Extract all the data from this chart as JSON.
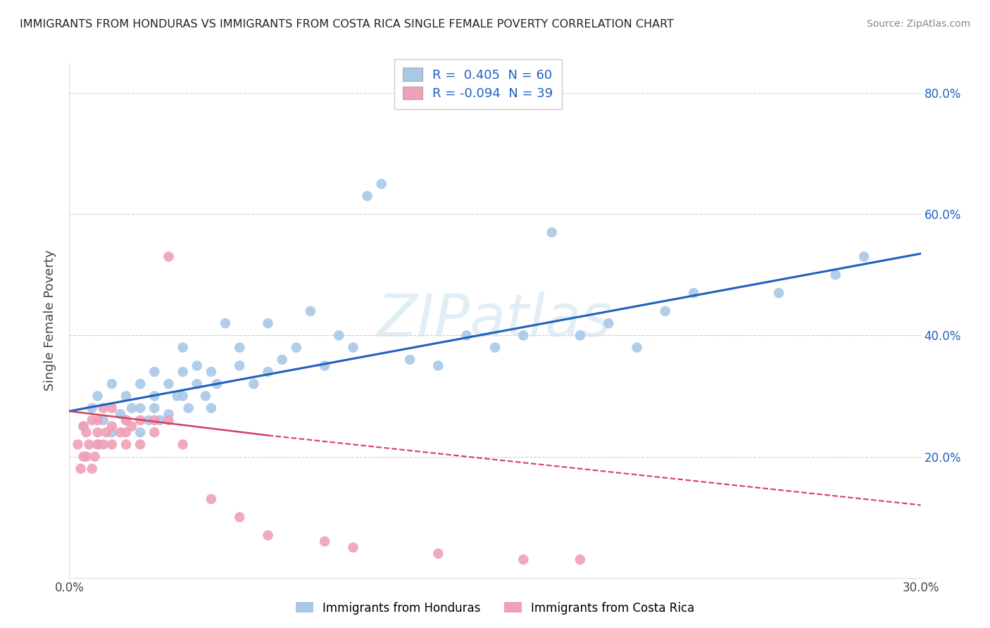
{
  "title": "IMMIGRANTS FROM HONDURAS VS IMMIGRANTS FROM COSTA RICA SINGLE FEMALE POVERTY CORRELATION CHART",
  "source": "Source: ZipAtlas.com",
  "ylabel": "Single Female Poverty",
  "r_honduras": 0.405,
  "n_honduras": 60,
  "r_costarica": -0.094,
  "n_costarica": 39,
  "xlim": [
    0.0,
    0.3
  ],
  "ylim": [
    0.0,
    0.85
  ],
  "color_honduras": "#a8c8e8",
  "color_costarica": "#f0a0b8",
  "line_color_honduras": "#2060c0",
  "line_color_costarica": "#d04060",
  "watermark": "ZIPatlas",
  "scatter_honduras_x": [
    0.005,
    0.008,
    0.01,
    0.01,
    0.012,
    0.015,
    0.015,
    0.018,
    0.02,
    0.02,
    0.022,
    0.025,
    0.025,
    0.025,
    0.028,
    0.03,
    0.03,
    0.03,
    0.032,
    0.035,
    0.035,
    0.038,
    0.04,
    0.04,
    0.04,
    0.042,
    0.045,
    0.045,
    0.048,
    0.05,
    0.05,
    0.052,
    0.055,
    0.06,
    0.06,
    0.065,
    0.07,
    0.07,
    0.075,
    0.08,
    0.085,
    0.09,
    0.095,
    0.1,
    0.105,
    0.11,
    0.12,
    0.13,
    0.14,
    0.15,
    0.16,
    0.17,
    0.18,
    0.19,
    0.2,
    0.21,
    0.22,
    0.25,
    0.27,
    0.28
  ],
  "scatter_honduras_y": [
    0.25,
    0.28,
    0.22,
    0.3,
    0.26,
    0.24,
    0.32,
    0.27,
    0.26,
    0.3,
    0.28,
    0.24,
    0.28,
    0.32,
    0.26,
    0.28,
    0.3,
    0.34,
    0.26,
    0.27,
    0.32,
    0.3,
    0.3,
    0.34,
    0.38,
    0.28,
    0.32,
    0.35,
    0.3,
    0.28,
    0.34,
    0.32,
    0.42,
    0.35,
    0.38,
    0.32,
    0.34,
    0.42,
    0.36,
    0.38,
    0.44,
    0.35,
    0.4,
    0.38,
    0.63,
    0.65,
    0.36,
    0.35,
    0.4,
    0.38,
    0.4,
    0.57,
    0.4,
    0.42,
    0.38,
    0.44,
    0.47,
    0.47,
    0.5,
    0.53
  ],
  "scatter_costarica_x": [
    0.003,
    0.004,
    0.005,
    0.005,
    0.006,
    0.006,
    0.007,
    0.008,
    0.008,
    0.009,
    0.01,
    0.01,
    0.01,
    0.012,
    0.012,
    0.013,
    0.015,
    0.015,
    0.015,
    0.018,
    0.02,
    0.02,
    0.02,
    0.022,
    0.025,
    0.025,
    0.03,
    0.03,
    0.035,
    0.035,
    0.04,
    0.05,
    0.06,
    0.07,
    0.09,
    0.1,
    0.13,
    0.16,
    0.18
  ],
  "scatter_costarica_y": [
    0.22,
    0.18,
    0.2,
    0.25,
    0.2,
    0.24,
    0.22,
    0.18,
    0.26,
    0.2,
    0.22,
    0.26,
    0.24,
    0.22,
    0.28,
    0.24,
    0.22,
    0.25,
    0.28,
    0.24,
    0.22,
    0.26,
    0.24,
    0.25,
    0.22,
    0.26,
    0.24,
    0.26,
    0.53,
    0.26,
    0.22,
    0.13,
    0.1,
    0.07,
    0.06,
    0.05,
    0.04,
    0.03,
    0.03
  ],
  "line_honduras_x0": 0.0,
  "line_honduras_x1": 0.3,
  "line_honduras_y0": 0.275,
  "line_honduras_y1": 0.535,
  "line_costarica_solid_x0": 0.0,
  "line_costarica_solid_x1": 0.07,
  "line_costarica_y0": 0.275,
  "line_costarica_y1": 0.235,
  "line_costarica_dash_x0": 0.07,
  "line_costarica_dash_x1": 0.3,
  "line_costarica_dash_y0": 0.235,
  "line_costarica_dash_y1": 0.12
}
